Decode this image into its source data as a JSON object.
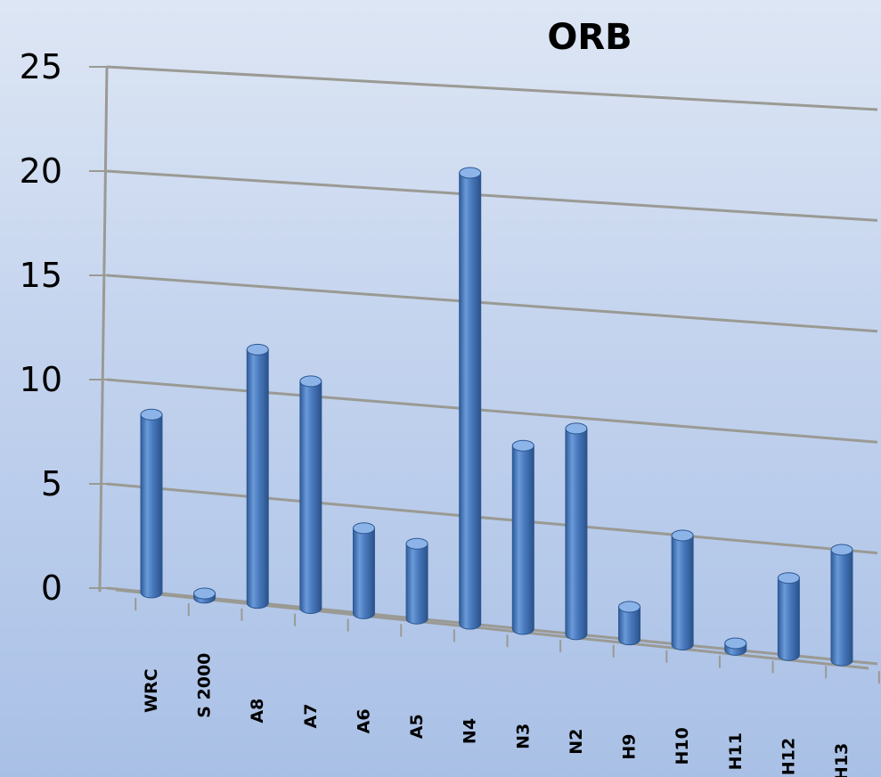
{
  "chart_data": {
    "type": "bar",
    "title": "ORB",
    "xlabel": "",
    "ylabel": "",
    "ylim": [
      0,
      25
    ],
    "y_ticks": [
      "0",
      "5",
      "10",
      "15",
      "20",
      "25"
    ],
    "categories": [
      "WRC",
      "S 2000",
      "A8",
      "A7",
      "A6",
      "A5",
      "N4",
      "N3",
      "N2",
      "H9",
      "H10",
      "H11",
      "H12",
      "H13"
    ],
    "values": [
      8.5,
      0.2,
      12,
      10.7,
      4,
      3.5,
      21,
      8.5,
      9.5,
      1.5,
      5,
      0.3,
      3.5,
      5
    ],
    "grid": true,
    "legend": "none",
    "colors": {
      "bar": "#4a7bbf",
      "bar_light": "#8db4e8",
      "bar_dark": "#2c5793",
      "grid": "#9a9a94"
    }
  }
}
